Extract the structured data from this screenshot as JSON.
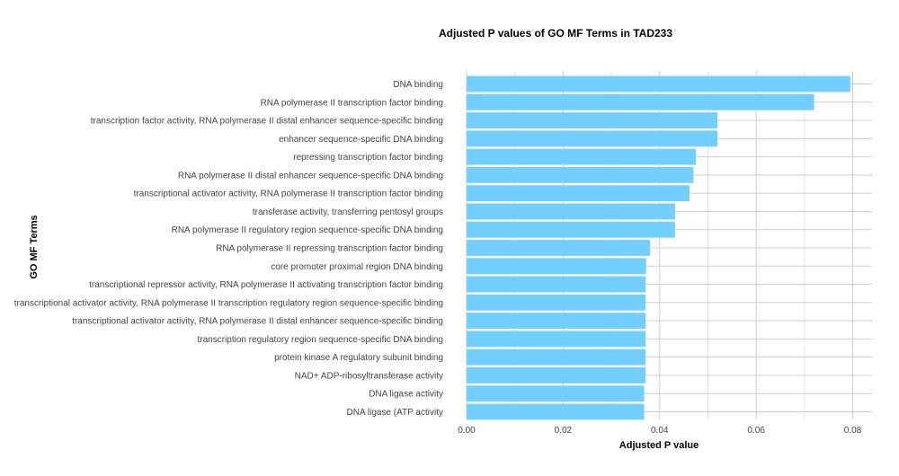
{
  "chart_data": {
    "type": "bar",
    "orientation": "horizontal",
    "title": "Adjusted P values of GO MF Terms in TAD233",
    "xlabel": "Adjusted P value",
    "ylabel": "GO MF Terms",
    "xlim": [
      0,
      0.084
    ],
    "x_ticks": [
      "0.00",
      "0.02",
      "0.04",
      "0.06",
      "0.08"
    ],
    "x_tick_values": [
      0,
      0.02,
      0.04,
      0.06,
      0.08
    ],
    "grid": true,
    "bar_color": "#73CFFF",
    "categories": [
      "DNA binding",
      "RNA polymerase II transcription factor binding",
      "transcription factor activity, RNA polymerase II distal enhancer sequence-specific binding",
      "enhancer sequence-specific DNA binding",
      "repressing transcription factor binding",
      "RNA polymerase II distal enhancer sequence-specific DNA binding",
      "transcriptional activator activity, RNA polymerase II transcription factor binding",
      "transferase activity, transferring pentosyl groups",
      "RNA polymerase II regulatory region sequence-specific DNA binding",
      "RNA polymerase II repressing transcription factor binding",
      "core promoter proximal region DNA binding",
      "transcriptional repressor activity, RNA polymerase II activating transcription factor binding",
      "transcriptional activator activity, RNA polymerase II transcription regulatory region sequence-specific binding",
      "transcriptional activator activity, RNA polymerase II distal enhancer sequence-specific binding",
      "transcription regulatory region sequence-specific DNA binding",
      "protein kinase A regulatory subunit binding",
      "NAD+ ADP-ribosyltransferase activity",
      "DNA ligase activity",
      "DNA ligase (ATP activity"
    ],
    "values": [
      0.0795,
      0.072,
      0.052,
      0.052,
      0.0475,
      0.047,
      0.0462,
      0.0432,
      0.0432,
      0.038,
      0.0372,
      0.0371,
      0.0371,
      0.0371,
      0.0371,
      0.0371,
      0.0371,
      0.0368,
      0.0368
    ]
  }
}
